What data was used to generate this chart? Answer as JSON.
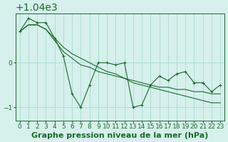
{
  "background_color": "#d6f0ec",
  "grid_color": "#b0ddd6",
  "line_color": "#1a6b2a",
  "xlabel": "Graphe pression niveau de la mer (hPa)",
  "xlabel_fontsize": 8,
  "tick_fontsize": 6.5,
  "ylim": [
    1038.7,
    1041.1
  ],
  "xlim": [
    -0.5,
    23.5
  ],
  "yticks": [
    1039,
    1040
  ],
  "xticks": [
    0,
    1,
    2,
    3,
    4,
    5,
    6,
    7,
    8,
    9,
    10,
    11,
    12,
    13,
    14,
    15,
    16,
    17,
    18,
    19,
    20,
    21,
    22,
    23
  ],
  "series1": [
    1040.7,
    1041.0,
    1040.9,
    1040.9,
    1040.55,
    1040.15,
    1039.3,
    1039.0,
    1039.5,
    1040.0,
    1040.0,
    1039.95,
    1040.0,
    1039.0,
    1039.05,
    1039.5,
    1039.7,
    1039.6,
    1039.75,
    1039.8,
    1039.55,
    1039.55,
    1039.35,
    1039.5
  ],
  "series2": [
    1040.7,
    1040.85,
    1040.85,
    1040.75,
    1040.55,
    1040.35,
    1040.2,
    1040.1,
    1040.0,
    1039.9,
    1039.8,
    1039.75,
    1039.65,
    1039.55,
    1039.5,
    1039.45,
    1039.4,
    1039.35,
    1039.3,
    1039.25,
    1039.2,
    1039.15,
    1039.1,
    1039.1
  ],
  "series3": [
    1040.7,
    1040.85,
    1040.85,
    1040.75,
    1040.5,
    1040.25,
    1040.1,
    1039.95,
    1039.9,
    1039.8,
    1039.75,
    1039.7,
    1039.65,
    1039.6,
    1039.55,
    1039.5,
    1039.45,
    1039.45,
    1039.4,
    1039.4,
    1039.35,
    1039.35,
    1039.3,
    1039.3
  ]
}
